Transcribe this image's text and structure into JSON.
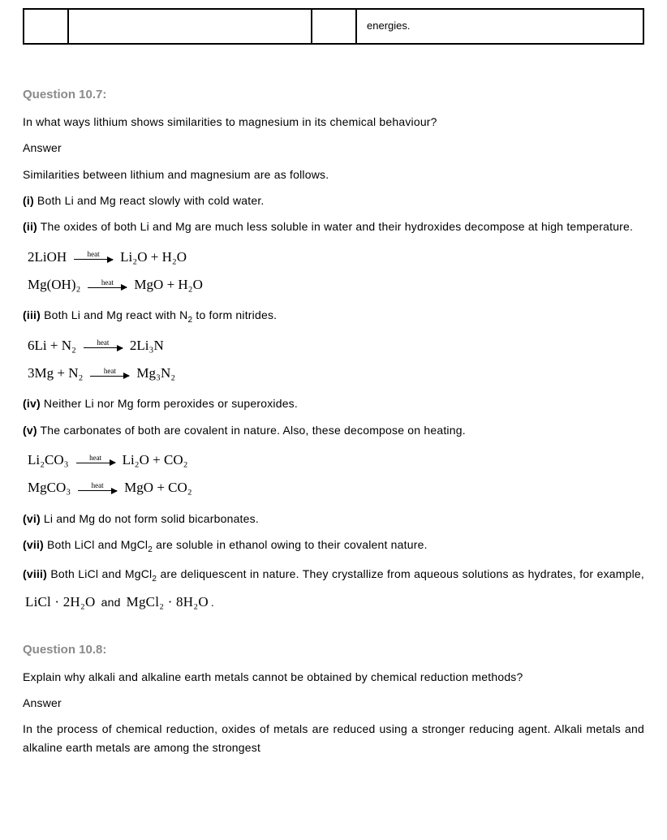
{
  "topTable": {
    "cell4": "energies."
  },
  "q107": {
    "heading": "Question 10.7:",
    "prompt": "In what ways lithium shows similarities to magnesium in its chemical behaviour?",
    "answerLabel": "Answer",
    "intro": "Similarities between lithium and magnesium are as follows.",
    "i_num": "(i)",
    "i_text": " Both Li and Mg react slowly with cold water.",
    "ii_num": "(ii)",
    "ii_text": " The oxides of both Li and Mg are much less soluble in water and their hydroxides decompose at high temperature.",
    "iii_num": "(iii)",
    "iii_text_a": " Both Li and Mg react with N",
    "iii_text_b": " to form nitrides.",
    "iv_num": "(iv)",
    "iv_text": " Neither Li nor Mg form peroxides or superoxides.",
    "v_num": "(v)",
    "v_text": " The carbonates of both are covalent in nature. Also, these decompose on heating.",
    "vi_num": "(vi)",
    "vi_text": " Li and Mg do not form solid bicarbonates.",
    "vii_num": "(vii)",
    "vii_text_a": " Both LiCl and MgCl",
    "vii_text_b": " are soluble in ethanol owing to their covalent nature.",
    "viii_num": "(viii)",
    "viii_text_a": " Both LiCl and MgCl",
    "viii_text_b": " are deliquescent in nature. They crystallize from aqueous solutions as hydrates, for example, ",
    "viii_and": " and ",
    "viii_dot": "."
  },
  "eq": {
    "heat": "heat",
    "lioh_l": "2LiOH",
    "lioh_r": "Li₂O + H₂O",
    "mgoh_l": "Mg(OH)₂",
    "mgoh_r": "MgO + H₂O",
    "lin_l": "6Li + N₂",
    "lin_r": "2Li₃N",
    "mgn_l": "3Mg + N₂",
    "mgn_r": "Mg₃N₂",
    "lico_l": "Li₂CO₃",
    "lico_r": "Li₂O + CO₂",
    "mgco_l": "MgCO₃",
    "mgco_r": "MgO + CO₂",
    "licl_hyd": "LiCl · 2H₂O",
    "mgcl_hyd": "MgCl₂ · 8H₂O"
  },
  "q108": {
    "heading": "Question 10.8:",
    "prompt": "Explain why alkali and alkaline earth metals cannot be obtained by chemical reduction methods?",
    "answerLabel": "Answer",
    "body": "In the process of chemical reduction, oxides of metals are reduced using a stronger reducing agent. Alkali metals and alkaline earth metals are among the strongest"
  },
  "sub2": "2"
}
